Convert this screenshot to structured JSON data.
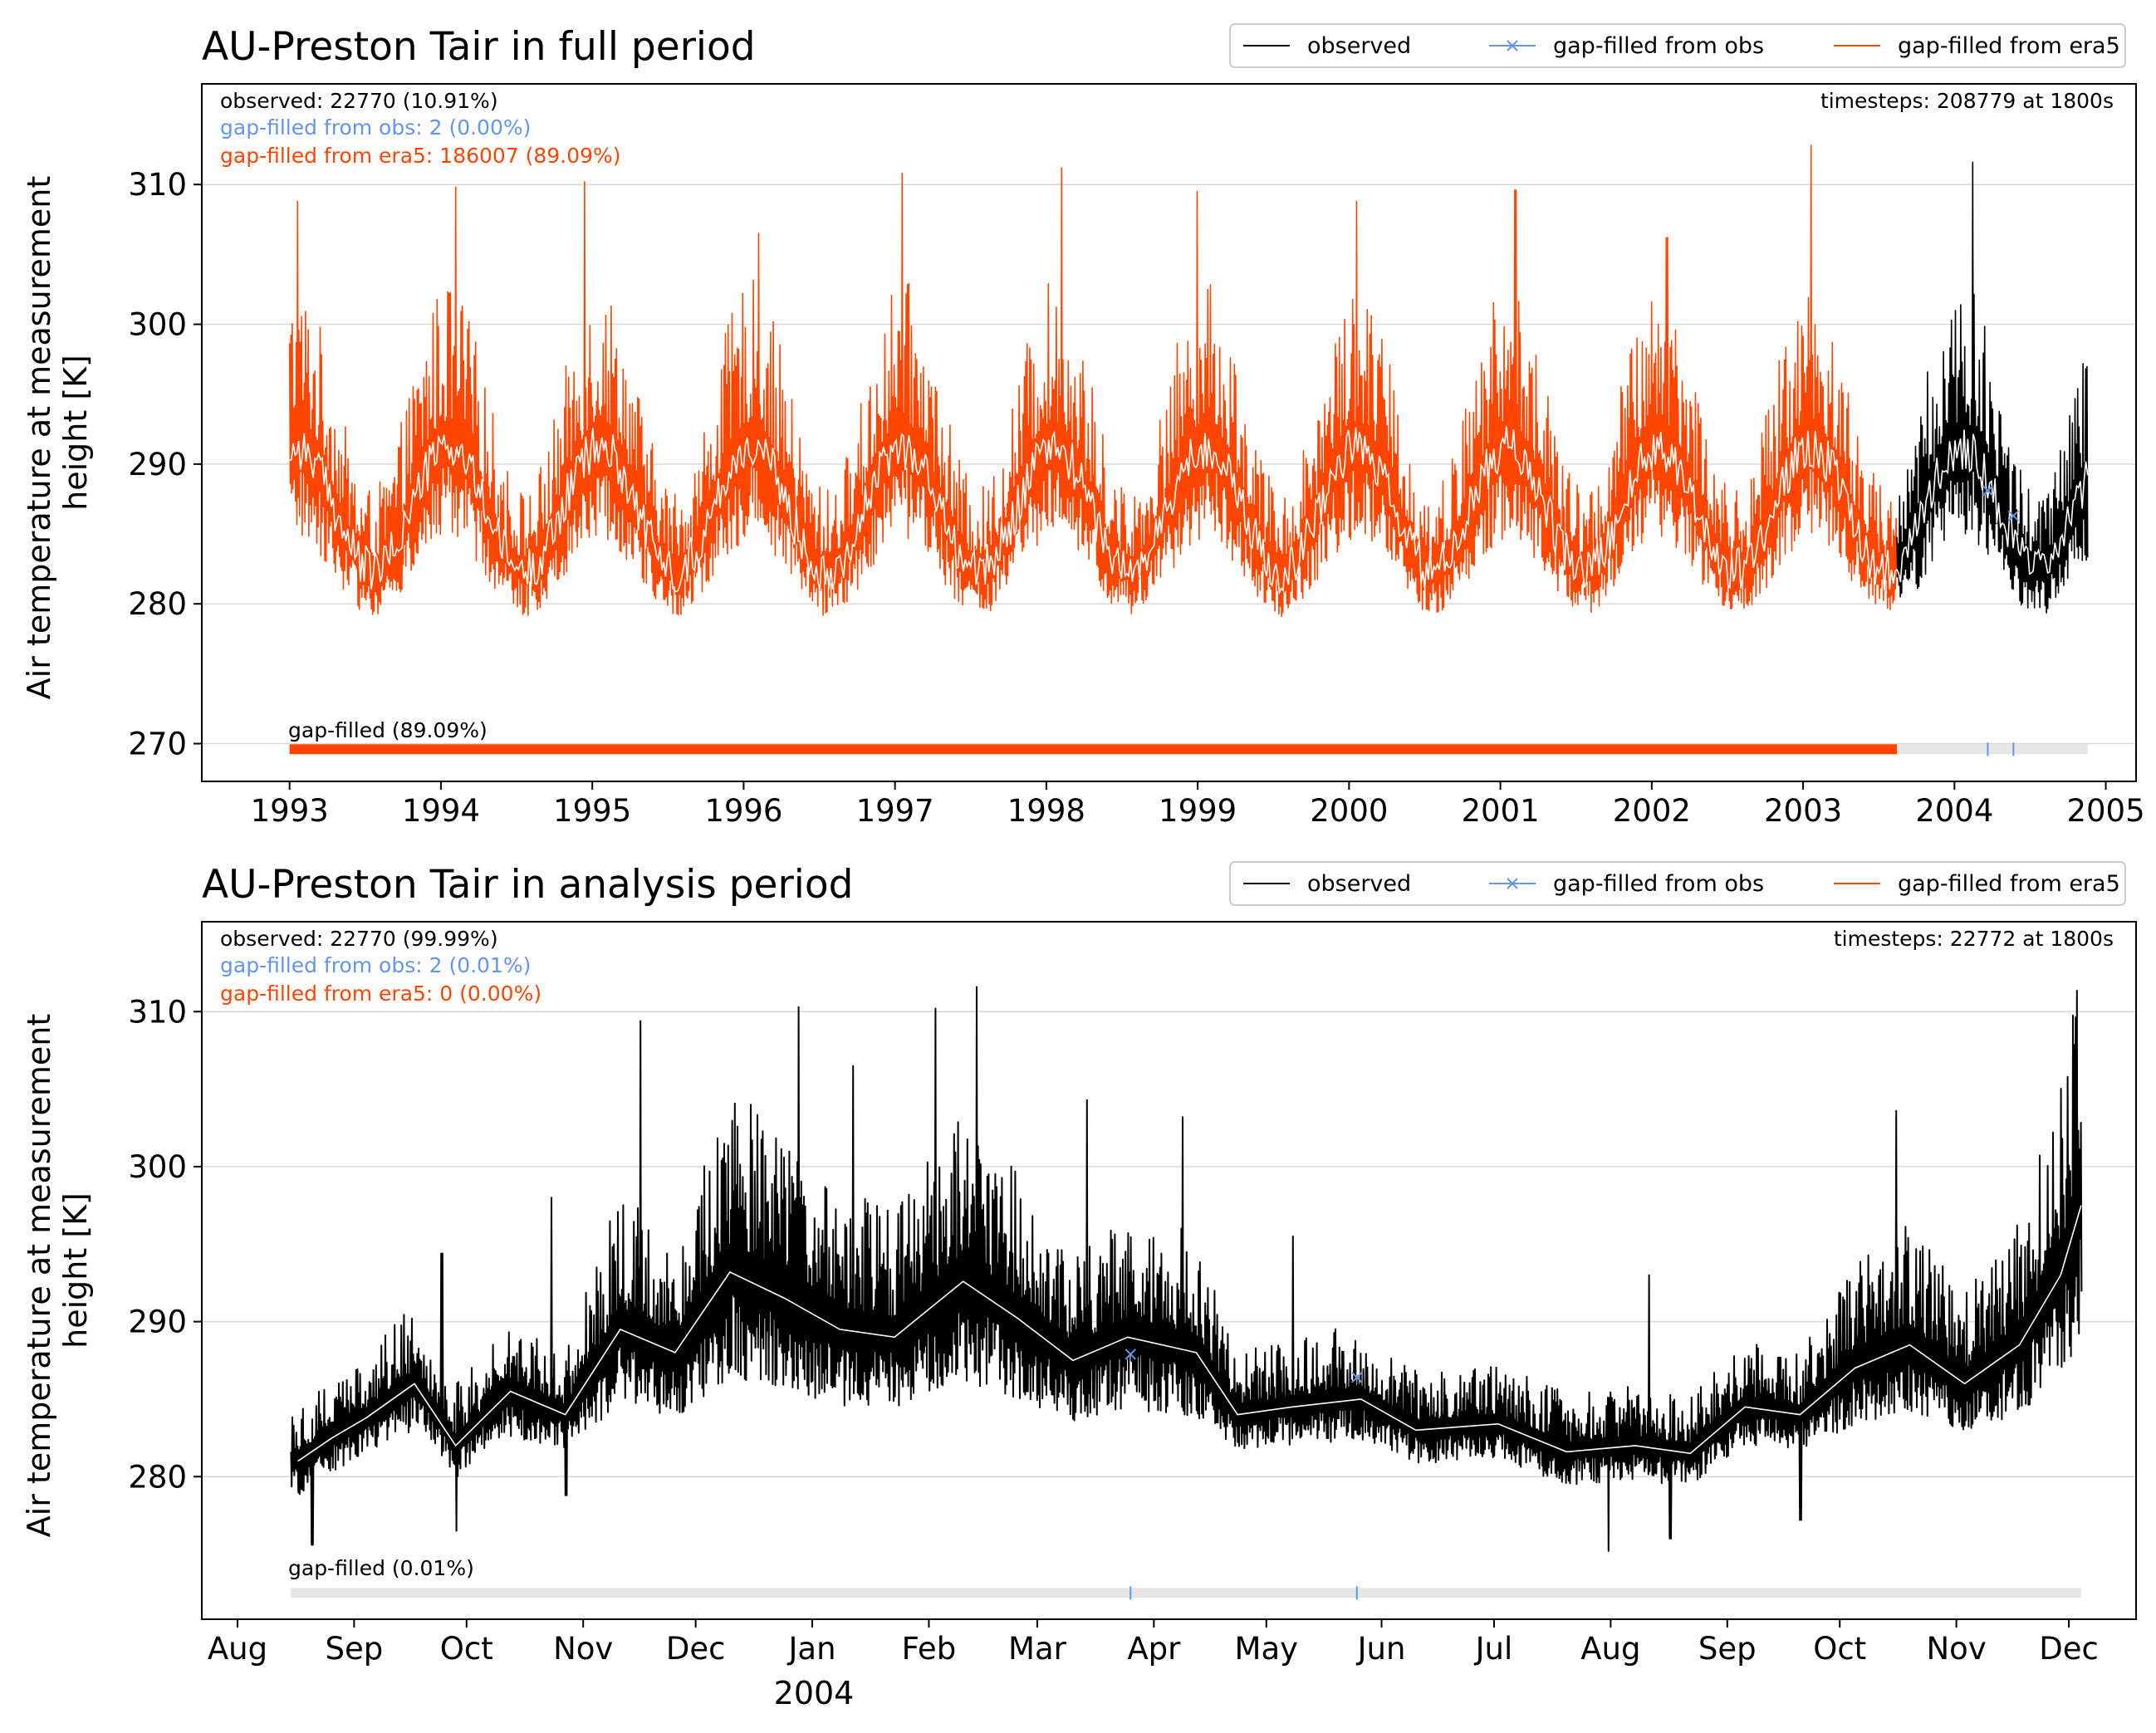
{
  "colors": {
    "observed": "#000000",
    "gap_obs": "#6495ED",
    "gap_era5": "#FF4500",
    "smooth": "#ffffff",
    "gapbar_bg": "#e6e6e6",
    "grid": "#d9d9d9"
  },
  "chart_data": [
    {
      "type": "line",
      "title": "AU-Preston Tair in full period",
      "ylabel": "Air temperature at measurement\nheight [K]",
      "ylabel_lines": [
        "Air temperature at measurement",
        "height [K]"
      ],
      "xlim": [
        1992.42,
        2005.2
      ],
      "ylim": [
        267.3,
        317.2
      ],
      "yticks": [
        270,
        280,
        290,
        300,
        310
      ],
      "xticks": [
        {
          "label": "1993",
          "x": 1993.0
        },
        {
          "label": "1994",
          "x": 1994.0
        },
        {
          "label": "1995",
          "x": 1995.0
        },
        {
          "label": "1996",
          "x": 1996.0
        },
        {
          "label": "1997",
          "x": 1997.0
        },
        {
          "label": "1998",
          "x": 1998.0
        },
        {
          "label": "1999",
          "x": 1999.0
        },
        {
          "label": "2000",
          "x": 2000.0
        },
        {
          "label": "2001",
          "x": 2001.0
        },
        {
          "label": "2002",
          "x": 2002.0
        },
        {
          "label": "2003",
          "x": 2003.0
        },
        {
          "label": "2004",
          "x": 2004.0
        },
        {
          "label": "2005",
          "x": 2005.0
        }
      ],
      "xlabel_extra": "",
      "grid": "horizontal",
      "legend": {
        "placement": "above-right",
        "entries": [
          {
            "label": "observed",
            "series": "observed",
            "marker": "none"
          },
          {
            "label": "gap-filled from obs",
            "series": "gap_obs",
            "marker": "x"
          },
          {
            "label": "gap-filled from era5",
            "series": "gap_era5",
            "marker": "none"
          }
        ]
      },
      "annotations_left": [
        {
          "text": "observed: 22770 (10.91%)",
          "series": "observed"
        },
        {
          "text": "gap-filled from obs: 2 (0.00%)",
          "series": "gap_obs"
        },
        {
          "text": "gap-filled from era5: 186007 (89.09%)",
          "series": "gap_era5"
        }
      ],
      "annotation_right": "timesteps: 208779 at 1800s",
      "gapbar": {
        "label": "gap-filled (89.09%)",
        "y": 269.6,
        "range": [
          1993.0,
          2004.88
        ],
        "era5_range": [
          1993.0,
          2003.62
        ],
        "obs_marks": [
          2004.22,
          2004.39
        ]
      },
      "series_shape": [
        {
          "name": "gap-filled from era5",
          "key": "gap_era5",
          "x_range": [
            1993.0,
            2003.62
          ]
        },
        {
          "name": "observed",
          "key": "observed",
          "x_range": [
            2003.62,
            2004.88
          ]
        }
      ],
      "seasonal_model": {
        "mean": 286.8,
        "amplitude": 4.4,
        "peak_phase": 0.05,
        "spread_warm": 12.0,
        "spread_cold": 6.0
      },
      "gap_obs_points": [
        {
          "x": 2004.22,
          "y": 288.1
        },
        {
          "x": 2004.39,
          "y": 286.3
        }
      ],
      "peaks": [
        {
          "x": 1993.05,
          "y": 308.8
        },
        {
          "x": 1994.1,
          "y": 309.8
        },
        {
          "x": 1994.95,
          "y": 310.2
        },
        {
          "x": 1996.1,
          "y": 306.5
        },
        {
          "x": 1997.05,
          "y": 310.8
        },
        {
          "x": 1998.1,
          "y": 311.2
        },
        {
          "x": 1999.0,
          "y": 309.5
        },
        {
          "x": 2000.05,
          "y": 308.8
        },
        {
          "x": 2001.1,
          "y": 309.6
        },
        {
          "x": 2002.1,
          "y": 306.2
        },
        {
          "x": 2003.05,
          "y": 312.8
        },
        {
          "x": 2004.12,
          "y": 311.6
        }
      ]
    },
    {
      "type": "line",
      "title": "AU-Preston Tair in analysis period",
      "ylabel": "Air temperature at measurement\nheight [K]",
      "ylabel_lines": [
        "Air temperature at measurement",
        "height [K]"
      ],
      "xlim": [
        2003.555,
        2004.965
      ],
      "ylim": [
        270.8,
        315.8
      ],
      "yticks": [
        280,
        290,
        300,
        310
      ],
      "xticks": [
        {
          "label": "Aug",
          "x": 2003.581
        },
        {
          "label": "Sep",
          "x": 2003.666
        },
        {
          "label": "Oct",
          "x": 2003.748
        },
        {
          "label": "Nov",
          "x": 2003.833
        },
        {
          "label": "Dec",
          "x": 2003.915
        },
        {
          "label": "Jan",
          "x": 2004.0
        },
        {
          "label": "Feb",
          "x": 2004.085
        },
        {
          "label": "Mar",
          "x": 2004.164
        },
        {
          "label": "Apr",
          "x": 2004.249
        },
        {
          "label": "May",
          "x": 2004.331
        },
        {
          "label": "Jun",
          "x": 2004.415
        },
        {
          "label": "Jul",
          "x": 2004.497
        },
        {
          "label": "Aug",
          "x": 2004.582
        },
        {
          "label": "Sep",
          "x": 2004.667
        },
        {
          "label": "Oct",
          "x": 2004.749
        },
        {
          "label": "Nov",
          "x": 2004.834
        },
        {
          "label": "Dec",
          "x": 2004.916
        }
      ],
      "xlabel_extra": "2004",
      "grid": "horizontal",
      "legend": {
        "placement": "above-right",
        "entries": [
          {
            "label": "observed",
            "series": "observed",
            "marker": "none"
          },
          {
            "label": "gap-filled from obs",
            "series": "gap_obs",
            "marker": "x"
          },
          {
            "label": "gap-filled from era5",
            "series": "gap_era5",
            "marker": "none"
          }
        ]
      },
      "annotations_left": [
        {
          "text": "observed: 22770 (99.99%)",
          "series": "observed"
        },
        {
          "text": "gap-filled from obs: 2 (0.01%)",
          "series": "gap_obs"
        },
        {
          "text": "gap-filled from era5: 0 (0.00%)",
          "series": "gap_era5"
        }
      ],
      "annotation_right": "timesteps: 22772 at 1800s",
      "gapbar": {
        "label": "gap-filled (0.01%)",
        "y": 272.5,
        "range": [
          2003.62,
          2004.925
        ],
        "era5_range": null,
        "obs_marks": [
          2004.232,
          2004.397
        ]
      },
      "series_shape": [
        {
          "name": "observed",
          "key": "observed",
          "x_range": [
            2003.62,
            2004.925
          ]
        }
      ],
      "smooth_points": [
        {
          "x": 2003.625,
          "y": 281.0
        },
        {
          "x": 2003.65,
          "y": 282.5
        },
        {
          "x": 2003.675,
          "y": 283.8
        },
        {
          "x": 2003.71,
          "y": 286.0
        },
        {
          "x": 2003.74,
          "y": 282.0
        },
        {
          "x": 2003.78,
          "y": 285.5
        },
        {
          "x": 2003.82,
          "y": 284.0
        },
        {
          "x": 2003.86,
          "y": 289.5
        },
        {
          "x": 2003.9,
          "y": 288.0
        },
        {
          "x": 2003.94,
          "y": 293.2
        },
        {
          "x": 2003.98,
          "y": 291.5
        },
        {
          "x": 2004.02,
          "y": 289.5
        },
        {
          "x": 2004.06,
          "y": 289.0
        },
        {
          "x": 2004.11,
          "y": 292.6
        },
        {
          "x": 2004.15,
          "y": 290.2
        },
        {
          "x": 2004.19,
          "y": 287.5
        },
        {
          "x": 2004.23,
          "y": 289.0
        },
        {
          "x": 2004.28,
          "y": 288.0
        },
        {
          "x": 2004.31,
          "y": 284.0
        },
        {
          "x": 2004.35,
          "y": 284.5
        },
        {
          "x": 2004.4,
          "y": 285.0
        },
        {
          "x": 2004.44,
          "y": 283.0
        },
        {
          "x": 2004.5,
          "y": 283.4
        },
        {
          "x": 2004.55,
          "y": 281.6
        },
        {
          "x": 2004.6,
          "y": 282.0
        },
        {
          "x": 2004.64,
          "y": 281.5
        },
        {
          "x": 2004.68,
          "y": 284.5
        },
        {
          "x": 2004.72,
          "y": 284.0
        },
        {
          "x": 2004.76,
          "y": 287.0
        },
        {
          "x": 2004.8,
          "y": 288.5
        },
        {
          "x": 2004.84,
          "y": 286.0
        },
        {
          "x": 2004.88,
          "y": 288.5
        },
        {
          "x": 2004.91,
          "y": 293.0
        },
        {
          "x": 2004.925,
          "y": 297.5
        }
      ],
      "gap_obs_points": [
        {
          "x": 2004.232,
          "y": 287.9
        },
        {
          "x": 2004.397,
          "y": 286.4
        }
      ],
      "peaks": [
        {
          "x": 2003.875,
          "y": 309.4
        },
        {
          "x": 2003.955,
          "y": 304.0
        },
        {
          "x": 2003.99,
          "y": 310.3
        },
        {
          "x": 2004.03,
          "y": 306.5
        },
        {
          "x": 2004.09,
          "y": 310.2
        },
        {
          "x": 2004.12,
          "y": 311.6
        },
        {
          "x": 2004.2,
          "y": 304.3
        },
        {
          "x": 2004.27,
          "y": 303.2
        },
        {
          "x": 2004.79,
          "y": 303.6
        },
        {
          "x": 2004.915,
          "y": 305.8
        },
        {
          "x": 2003.73,
          "y": 294.4
        },
        {
          "x": 2003.81,
          "y": 298.0
        },
        {
          "x": 2004.35,
          "y": 295.5
        },
        {
          "x": 2004.61,
          "y": 293.0
        }
      ],
      "troughs": [
        {
          "x": 2003.635,
          "y": 275.6
        },
        {
          "x": 2004.58,
          "y": 275.2
        },
        {
          "x": 2004.625,
          "y": 276.0
        },
        {
          "x": 2004.72,
          "y": 277.2
        },
        {
          "x": 2003.74,
          "y": 276.5
        },
        {
          "x": 2003.82,
          "y": 278.8
        }
      ]
    }
  ]
}
